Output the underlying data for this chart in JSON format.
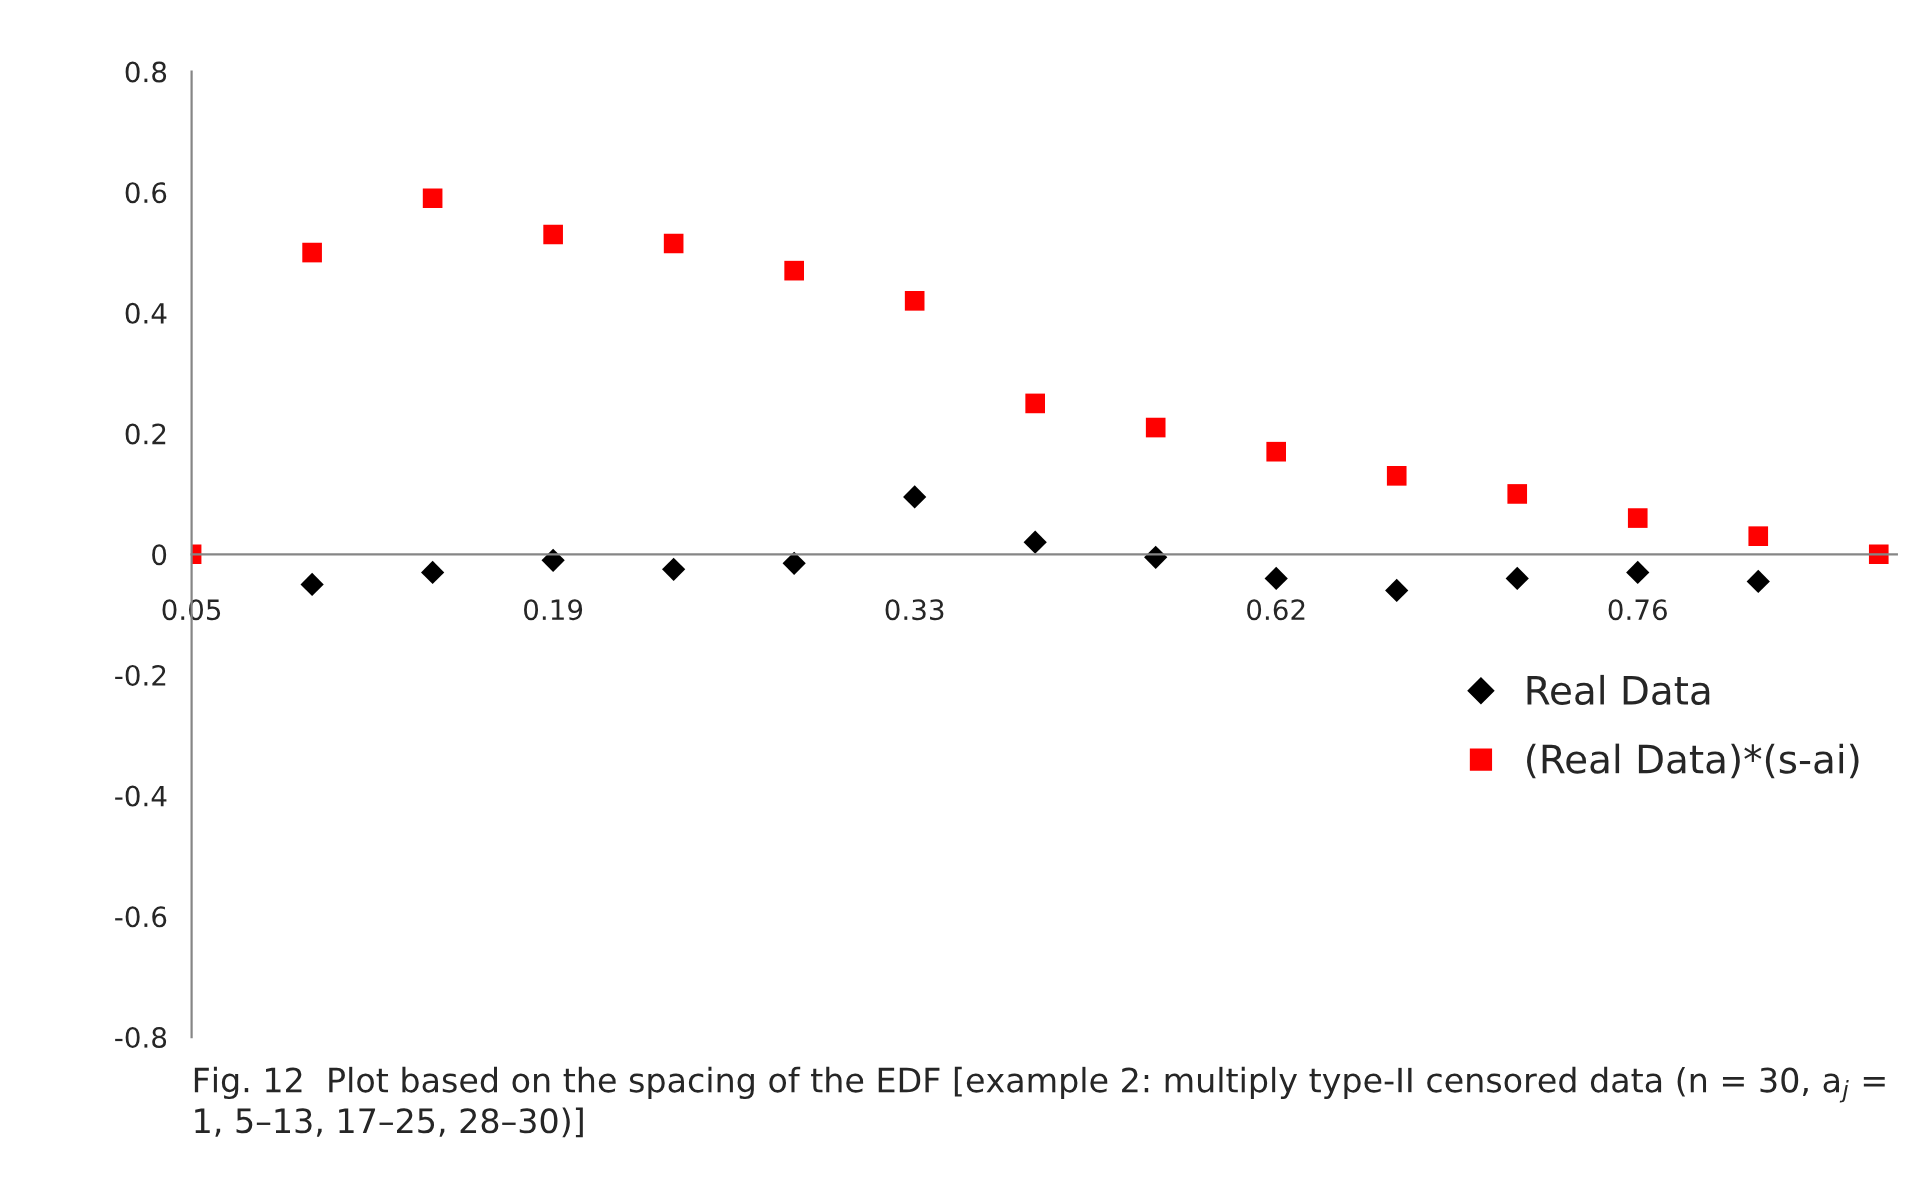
{
  "chart_data": {
    "type": "scatter",
    "categories": [
      "0.05",
      null,
      null,
      "0.19",
      null,
      null,
      "0.33",
      null,
      null,
      "0.62",
      null,
      null,
      "0.76",
      null,
      null
    ],
    "series": [
      {
        "name": "Real Data",
        "color": "#000000",
        "marker": "diamond",
        "values": [
          null,
          -0.05,
          -0.03,
          -0.01,
          -0.025,
          -0.015,
          0.095,
          0.02,
          -0.005,
          -0.04,
          -0.06,
          -0.04,
          -0.03,
          -0.045,
          null
        ]
      },
      {
        "name": "(Real Data)*(s-ai)",
        "color": "#ff0000",
        "marker": "square",
        "values": [
          0,
          0.5,
          0.59,
          0.53,
          0.515,
          0.47,
          0.42,
          0.25,
          0.21,
          0.17,
          0.13,
          0.1,
          0.06,
          0.03,
          0
        ]
      }
    ],
    "ylim": [
      -0.8,
      0.8
    ],
    "yticks": [
      -0.8,
      -0.6,
      -0.4,
      -0.2,
      0,
      0.2,
      0.4,
      0.6,
      0.8
    ],
    "grid": false,
    "legend": "right",
    "annotations": [
      "Fig. 12  Plot based on the spacing of the EDF [example 2: multiply type-II censored data (n = 30, a$_{j}$ = 1, 5–13, 17–25, 28–30)]"
    ]
  }
}
